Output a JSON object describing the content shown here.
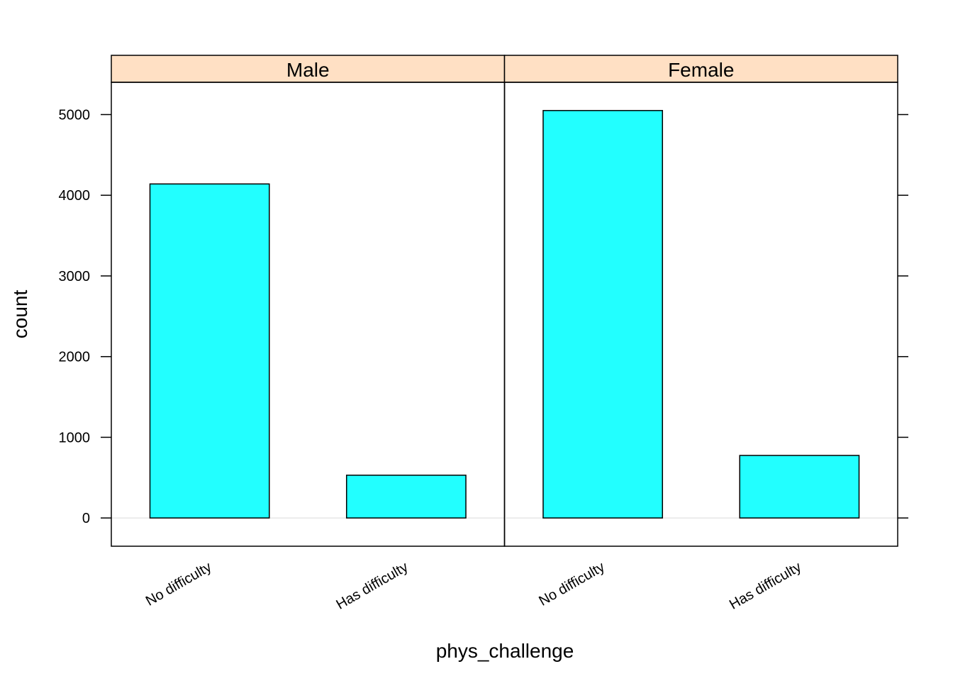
{
  "chart_data": {
    "type": "bar",
    "xlabel": "phys_challenge",
    "ylabel": "count",
    "ylim": [
      -350,
      5400
    ],
    "yticks": [
      0,
      1000,
      2000,
      3000,
      4000,
      5000
    ],
    "ytick_labels": [
      "0",
      "1000",
      "2000",
      "3000",
      "4000",
      "5000"
    ],
    "categories": [
      "No difficulty",
      "Has difficulty"
    ],
    "bar_color": "#22FFFF",
    "strip_color": "#FFE0C4",
    "panels": [
      {
        "name": "Male",
        "values": [
          4140,
          530
        ]
      },
      {
        "name": "Female",
        "values": [
          5050,
          775
        ]
      }
    ],
    "grid": false,
    "reference_line_at": 0
  }
}
